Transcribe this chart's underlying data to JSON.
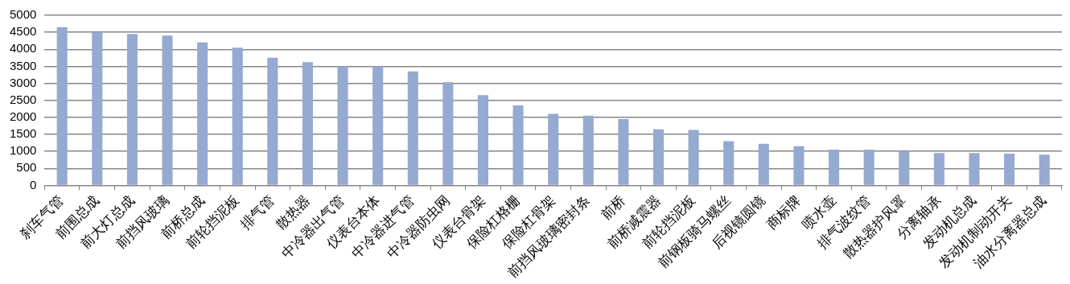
{
  "chart_data": {
    "type": "bar",
    "categories": [
      "刹车气管",
      "前围总成",
      "前大灯总成",
      "前挡风玻璃",
      "前桥总成",
      "前轮挡泥板",
      "排气管",
      "散热器",
      "中冷器出气管",
      "仪表台本体",
      "中冷器进气管",
      "中冷器防虫网",
      "仪表台骨架",
      "保险杠格栅",
      "保险杠骨架",
      "前挡风玻璃密封条",
      "前桥",
      "前桥减震器",
      "前轮挡泥板",
      "前钢板骑马螺丝",
      "后视镜圆镜",
      "商标牌",
      "喷水壶",
      "排气波纹管",
      "散热器护风罩",
      "分离轴承",
      "发动机总成",
      "发动机制动开关",
      "油水分离器总成"
    ],
    "values": [
      4650,
      4500,
      4450,
      4400,
      4200,
      4050,
      3750,
      3620,
      3500,
      3500,
      3350,
      3030,
      2650,
      2350,
      2100,
      2050,
      1950,
      1650,
      1630,
      1300,
      1220,
      1150,
      1050,
      1050,
      1000,
      950,
      950,
      930,
      900
    ],
    "color": "#95a9d1",
    "ylim": [
      0,
      5000
    ],
    "yticks": [
      0,
      500,
      1000,
      1500,
      2000,
      2500,
      3000,
      3500,
      4000,
      4500,
      5000
    ],
    "grid": "y",
    "legend": false
  }
}
